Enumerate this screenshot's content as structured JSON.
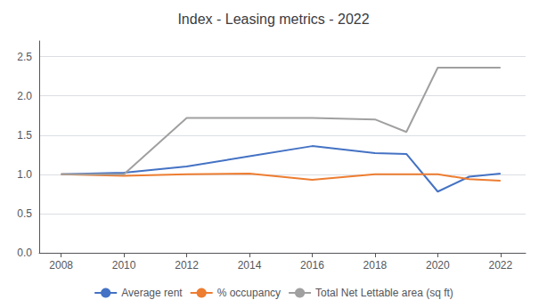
{
  "chart_data": {
    "type": "line",
    "title": "Index - Leasing metrics - 2022",
    "x": [
      2008,
      2010,
      2012,
      2014,
      2016,
      2018,
      2019,
      2020,
      2021,
      2022
    ],
    "series": [
      {
        "name": "Average rent",
        "color": "#4472C4",
        "values": [
          1.0,
          1.02,
          1.1,
          1.23,
          1.36,
          1.27,
          1.26,
          0.78,
          0.97,
          1.01
        ]
      },
      {
        "name": "% occupancy",
        "color": "#ED7D31",
        "values": [
          1.0,
          0.98,
          1.0,
          1.01,
          0.93,
          1.0,
          1.0,
          1.0,
          0.94,
          0.92
        ]
      },
      {
        "name": "Total Net Lettable area (sq ft)",
        "color": "#A0A0A0",
        "values": [
          1.0,
          1.0,
          1.72,
          1.72,
          1.72,
          1.7,
          1.54,
          2.36,
          2.36,
          2.36
        ]
      }
    ],
    "xlim": [
      2007.3,
      2022.8
    ],
    "xticks": [
      2008,
      2010,
      2012,
      2014,
      2016,
      2018,
      2020,
      2022
    ],
    "ylim": [
      0.0,
      2.7
    ],
    "yticks": [
      {
        "value": 0,
        "label": "0.0"
      },
      0.5,
      {
        "value": 1,
        "label": "1.0"
      },
      1.5,
      {
        "value": 2,
        "label": "2.0"
      },
      2.5
    ],
    "grid": "y",
    "legend": "bottom"
  }
}
